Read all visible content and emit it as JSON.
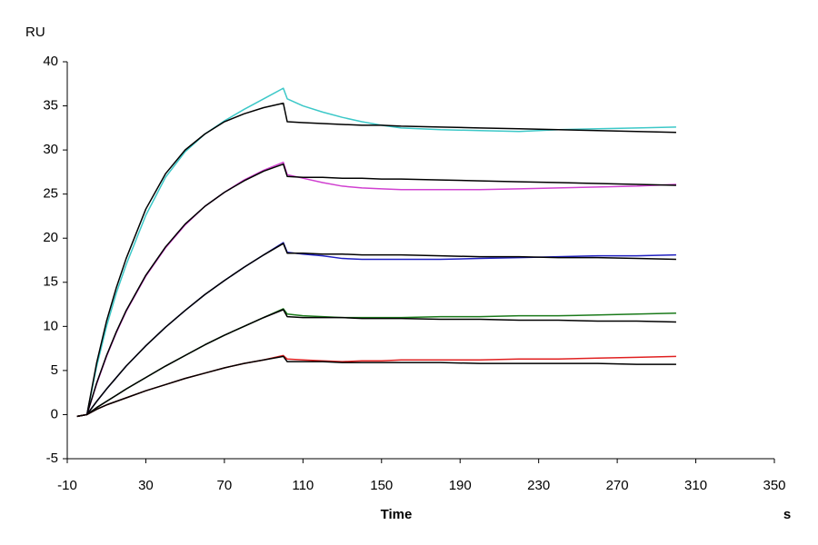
{
  "chart_data": {
    "type": "line",
    "y_label": "RU",
    "x_label": "Time",
    "x_unit": "s",
    "x": [
      -5,
      0,
      5,
      10,
      15,
      20,
      30,
      40,
      50,
      60,
      70,
      80,
      90,
      100,
      102,
      110,
      120,
      130,
      140,
      150,
      160,
      180,
      200,
      220,
      240,
      260,
      280,
      300
    ],
    "series": [
      {
        "color": "#3cc8c8",
        "values": [
          -0.2,
          0,
          5.5,
          10.0,
          13.8,
          17.0,
          22.6,
          26.9,
          29.8,
          31.8,
          33.3,
          34.6,
          35.8,
          37.0,
          35.8,
          35.0,
          34.3,
          33.7,
          33.2,
          32.8,
          32.5,
          32.3,
          32.2,
          32.1,
          32.3,
          32.4,
          32.5,
          32.6
        ]
      },
      {
        "color": "#000000",
        "values": [
          -0.2,
          0,
          5.9,
          10.6,
          14.4,
          17.7,
          23.3,
          27.3,
          30.0,
          31.8,
          33.2,
          34.1,
          34.8,
          35.3,
          33.2,
          33.1,
          33.0,
          32.9,
          32.8,
          32.8,
          32.7,
          32.6,
          32.5,
          32.4,
          32.3,
          32.2,
          32.1,
          32.0
        ]
      },
      {
        "color": "#d040d0",
        "values": [
          -0.2,
          0,
          3.5,
          6.6,
          9.3,
          11.7,
          15.7,
          18.9,
          21.5,
          23.6,
          25.2,
          26.6,
          27.7,
          28.6,
          27.2,
          26.8,
          26.3,
          25.9,
          25.7,
          25.6,
          25.5,
          25.5,
          25.5,
          25.6,
          25.7,
          25.8,
          25.9,
          26.1
        ]
      },
      {
        "color": "#000000",
        "values": [
          -0.2,
          0,
          3.6,
          6.7,
          9.4,
          11.8,
          15.8,
          19.0,
          21.6,
          23.6,
          25.2,
          26.5,
          27.6,
          28.4,
          27.0,
          26.9,
          26.9,
          26.8,
          26.8,
          26.7,
          26.7,
          26.6,
          26.5,
          26.4,
          26.3,
          26.2,
          26.1,
          26.0
        ]
      },
      {
        "color": "#2020c0",
        "values": [
          -0.2,
          0,
          1.5,
          2.9,
          4.2,
          5.5,
          7.8,
          9.9,
          11.8,
          13.6,
          15.2,
          16.7,
          18.1,
          19.5,
          18.4,
          18.2,
          18.0,
          17.7,
          17.6,
          17.6,
          17.6,
          17.6,
          17.7,
          17.8,
          17.9,
          18.0,
          18.0,
          18.1
        ]
      },
      {
        "color": "#000000",
        "values": [
          -0.2,
          0,
          1.5,
          2.9,
          4.2,
          5.5,
          7.8,
          9.9,
          11.8,
          13.6,
          15.2,
          16.7,
          18.1,
          19.4,
          18.3,
          18.3,
          18.2,
          18.2,
          18.1,
          18.1,
          18.1,
          18.0,
          17.9,
          17.9,
          17.8,
          17.8,
          17.7,
          17.6
        ]
      },
      {
        "color": "#1a7a1a",
        "values": [
          -0.2,
          0,
          0.8,
          1.5,
          2.2,
          2.9,
          4.2,
          5.5,
          6.7,
          7.9,
          9.0,
          10.0,
          11.0,
          12.0,
          11.4,
          11.2,
          11.1,
          11.0,
          11.0,
          11.0,
          11.0,
          11.1,
          11.1,
          11.2,
          11.2,
          11.3,
          11.4,
          11.5
        ]
      },
      {
        "color": "#000000",
        "values": [
          -0.2,
          0,
          0.8,
          1.5,
          2.2,
          2.9,
          4.2,
          5.5,
          6.7,
          7.9,
          9.0,
          10.0,
          11.0,
          11.9,
          11.1,
          11.0,
          11.0,
          11.0,
          10.9,
          10.9,
          10.9,
          10.8,
          10.8,
          10.7,
          10.7,
          10.6,
          10.6,
          10.5
        ]
      },
      {
        "color": "#e02020",
        "values": [
          -0.2,
          0,
          0.6,
          1.1,
          1.5,
          1.9,
          2.7,
          3.4,
          4.1,
          4.7,
          5.3,
          5.8,
          6.2,
          6.7,
          6.3,
          6.2,
          6.1,
          6.0,
          6.1,
          6.1,
          6.2,
          6.2,
          6.2,
          6.3,
          6.3,
          6.4,
          6.5,
          6.6
        ]
      },
      {
        "color": "#000000",
        "values": [
          -0.2,
          0,
          0.6,
          1.1,
          1.5,
          1.9,
          2.7,
          3.4,
          4.1,
          4.7,
          5.3,
          5.8,
          6.2,
          6.6,
          6.0,
          6.0,
          6.0,
          5.9,
          5.9,
          5.9,
          5.9,
          5.9,
          5.8,
          5.8,
          5.8,
          5.8,
          5.7,
          5.7
        ]
      }
    ],
    "xlim": [
      -10,
      350
    ],
    "xticks": [
      -10,
      30,
      70,
      110,
      150,
      190,
      230,
      270,
      310,
      350
    ],
    "ylim": [
      -5,
      40
    ],
    "yticks": [
      -5,
      0,
      5,
      10,
      15,
      20,
      25,
      30,
      35,
      40
    ],
    "grid": false
  }
}
